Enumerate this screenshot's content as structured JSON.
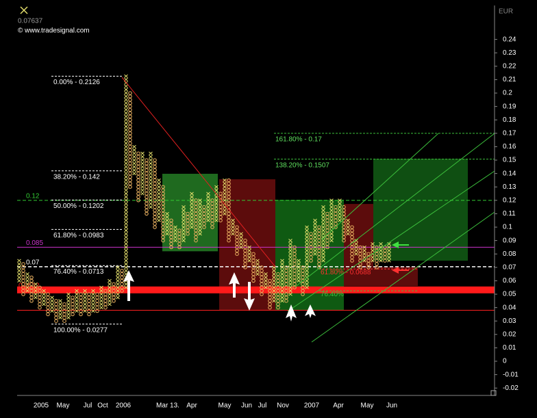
{
  "header": {
    "symbol_value": "0.07637",
    "copyright": "© www.tradesignal.com",
    "currency": "EUR"
  },
  "chart_data": {
    "type": "point_and_figure",
    "ylim": [
      -0.0255,
      0.2643
    ],
    "yticks": [
      0.24,
      0.23,
      0.22,
      0.21,
      0.2,
      0.19,
      0.18,
      0.17,
      0.16,
      0.15,
      0.14,
      0.13,
      0.12,
      0.11,
      0.1,
      0.09,
      0.08,
      0.07,
      0.06,
      0.05,
      0.04,
      0.03,
      0.02,
      0.01,
      0,
      -0.01,
      -0.02
    ],
    "x_labels": [
      "2005",
      "May",
      "Jul",
      "Oct",
      "2006",
      "Mar 13.",
      "Apr",
      "May",
      "Jun",
      "Jul",
      "Nov",
      "2007",
      "Apr",
      "May",
      "Jun"
    ],
    "x_color": "#e4df6c",
    "o_color": "#e8b060",
    "columns": [
      [
        0.06,
        0.075
      ],
      [
        0.05,
        0.0725
      ],
      [
        0.0525,
        0.065
      ],
      [
        0.045,
        0.0625
      ],
      [
        0.0475,
        0.0575
      ],
      [
        0.04,
        0.055
      ],
      [
        0.0425,
        0.0525
      ],
      [
        0.035,
        0.05
      ],
      [
        0.0375,
        0.0475
      ],
      [
        0.03,
        0.045
      ],
      [
        0.0325,
        0.045
      ],
      [
        0.03,
        0.0425
      ],
      [
        0.0325,
        0.05
      ],
      [
        0.035,
        0.0475
      ],
      [
        0.0375,
        0.0525
      ],
      [
        0.035,
        0.05
      ],
      [
        0.0375,
        0.0525
      ],
      [
        0.035,
        0.05
      ],
      [
        0.0375,
        0.0525
      ],
      [
        0.0375,
        0.05
      ],
      [
        0.04,
        0.055
      ],
      [
        0.04,
        0.0525
      ],
      [
        0.0425,
        0.06
      ],
      [
        0.045,
        0.0575
      ],
      [
        0.0475,
        0.07
      ],
      [
        0.0525,
        0.0675
      ],
      [
        0.055,
        0.2126
      ],
      [
        0.13,
        0.2
      ],
      [
        0.14,
        0.16
      ],
      [
        0.12,
        0.155
      ],
      [
        0.125,
        0.155
      ],
      [
        0.11,
        0.15
      ],
      [
        0.115,
        0.155
      ],
      [
        0.1,
        0.15
      ],
      [
        0.105,
        0.135
      ],
      [
        0.09,
        0.13
      ],
      [
        0.095,
        0.11
      ],
      [
        0.085,
        0.105
      ],
      [
        0.09,
        0.1
      ],
      [
        0.085,
        0.0975
      ],
      [
        0.09,
        0.115
      ],
      [
        0.095,
        0.11
      ],
      [
        0.1,
        0.125
      ],
      [
        0.09,
        0.12
      ],
      [
        0.095,
        0.12
      ],
      [
        0.1,
        0.115
      ],
      [
        0.105,
        0.125
      ],
      [
        0.1,
        0.12
      ],
      [
        0.105,
        0.13
      ],
      [
        0.105,
        0.125
      ],
      [
        0.11,
        0.135
      ],
      [
        0.09,
        0.135
      ],
      [
        0.095,
        0.105
      ],
      [
        0.08,
        0.1
      ],
      [
        0.085,
        0.095
      ],
      [
        0.07,
        0.09
      ],
      [
        0.075,
        0.085
      ],
      [
        0.06,
        0.08
      ],
      [
        0.065,
        0.075
      ],
      [
        0.05,
        0.07
      ],
      [
        0.055,
        0.065
      ],
      [
        0.04,
        0.06
      ],
      [
        0.045,
        0.07
      ],
      [
        0.04,
        0.065
      ],
      [
        0.045,
        0.075
      ],
      [
        0.045,
        0.07
      ],
      [
        0.05,
        0.09
      ],
      [
        0.055,
        0.085
      ],
      [
        0.06,
        0.075
      ],
      [
        0.05,
        0.07
      ],
      [
        0.055,
        0.1
      ],
      [
        0.075,
        0.095
      ],
      [
        0.08,
        0.105
      ],
      [
        0.07,
        0.1
      ],
      [
        0.075,
        0.115
      ],
      [
        0.085,
        0.11
      ],
      [
        0.09,
        0.12
      ],
      [
        0.1,
        0.115
      ],
      [
        0.105,
        0.12
      ],
      [
        0.09,
        0.115
      ],
      [
        0.095,
        0.105
      ],
      [
        0.075,
        0.1
      ],
      [
        0.08,
        0.09
      ],
      [
        0.07,
        0.085
      ],
      [
        0.075,
        0.085
      ],
      [
        0.07,
        0.08
      ],
      [
        0.075,
        0.0875
      ],
      [
        0.07,
        0.085
      ],
      [
        0.075,
        0.0875
      ],
      [
        0.075,
        0.085
      ],
      [
        0.075,
        0.0875
      ]
    ],
    "zones": [
      {
        "color": "#0f4f12",
        "top": 0.151,
        "bottom": 0.075
      },
      {
        "color": "#1f6a1f",
        "top": 0.1398,
        "bottom": 0.082
      },
      {
        "color": "#5c0c0c",
        "top": 0.1357,
        "bottom": 0.0378
      },
      {
        "color": "#0f5a12",
        "top": 0.1204,
        "bottom": 0.0378
      },
      {
        "color": "#5c0c0c",
        "top": 0.1173,
        "bottom": 0.0704
      },
      {
        "color": "#5c0c0c",
        "top": 0.0704,
        "bottom": 0.0561
      }
    ],
    "levels": [
      {
        "label": "0.12",
        "value": 0.12,
        "color": "#33cc33",
        "style": "dashed"
      },
      {
        "label": "0.085",
        "value": 0.085,
        "color": "#cc33cc",
        "style": "solid"
      },
      {
        "label": "0.07",
        "value": 0.0705,
        "color": "#ffffff",
        "style": "dashed"
      },
      {
        "label": "0.0532",
        "value": 0.0532,
        "color": "#ff1a1a",
        "style": "band"
      }
    ],
    "support_line": {
      "value": 0.038,
      "color": "#ff2020"
    },
    "fib_retracement": [
      {
        "label": "0.00% - 0.2126",
        "value": 0.2126
      },
      {
        "label": "38.20% - 0.142",
        "value": 0.142
      },
      {
        "label": "50.00% - 0.1202",
        "value": 0.1202
      },
      {
        "label": "61.80% - 0.0983",
        "value": 0.0983
      },
      {
        "label": "76.40% - 0.0713",
        "value": 0.0713
      },
      {
        "label": "100.00% - 0.0277",
        "value": 0.0277
      }
    ],
    "fib_extension": [
      {
        "label": "161.80% - 0.17",
        "value": 0.17
      },
      {
        "label": "138.20% - 0.1507",
        "value": 0.1507
      }
    ],
    "red_fib": [
      {
        "label": "61.80% - 0.0688",
        "value": 0.0688,
        "color": "#ff3030"
      },
      {
        "label": "76.40%",
        "value": 0.0525,
        "color": "#40c040"
      }
    ]
  }
}
